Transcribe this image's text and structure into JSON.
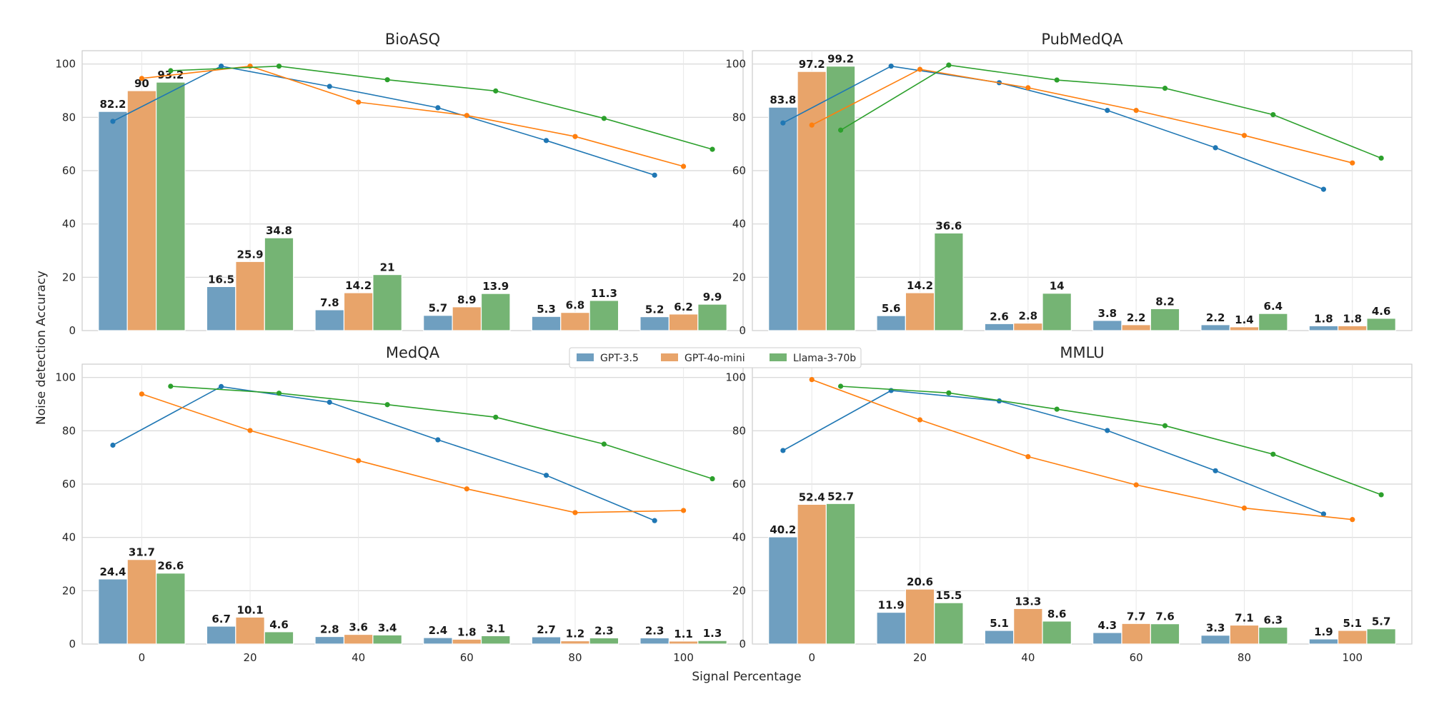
{
  "figure": {
    "xlabel": "Signal Percentage",
    "ylabel": "Noise detection Accuracy"
  },
  "legend": {
    "placement": "center",
    "items": [
      {
        "name": "GPT-3.5",
        "color": "#1f77b4"
      },
      {
        "name": "GPT-4o-mini",
        "color": "#ff7f0e"
      },
      {
        "name": "Llama-3-70b",
        "color": "#2ca02c"
      }
    ]
  },
  "chart_data": [
    {
      "type": "bar",
      "title": "BioASQ",
      "categories": [
        "0",
        "20",
        "40",
        "60",
        "80",
        "100"
      ],
      "ylim": [
        0,
        105
      ],
      "yticks": [
        0,
        20,
        40,
        60,
        80,
        100
      ],
      "grid": true,
      "series": [
        {
          "name": "GPT-3.5",
          "values": [
            82.2,
            16.5,
            7.8,
            5.7,
            5.3,
            5.2
          ],
          "labels": [
            "82.2",
            "16.5",
            "7.8",
            "5.7",
            "5.3",
            "5.2"
          ]
        },
        {
          "name": "GPT-4o-mini",
          "values": [
            90,
            25.9,
            14.2,
            8.9,
            6.8,
            6.2
          ],
          "labels": [
            "90",
            "25.9",
            "14.2",
            "8.9",
            "6.8",
            "6.2"
          ]
        },
        {
          "name": "Llama-3-70b",
          "values": [
            93.2,
            34.8,
            21,
            13.9,
            11.3,
            9.9
          ],
          "labels": [
            "93.2",
            "34.8",
            "21",
            "13.9",
            "11.3",
            "9.9"
          ]
        }
      ],
      "lines": [
        {
          "name": "GPT-3.5",
          "values": [
            78.5,
            99.2,
            91.6,
            83.6,
            71.3,
            58.3
          ]
        },
        {
          "name": "GPT-4o-mini",
          "values": [
            94.6,
            99.2,
            85.7,
            80.7,
            72.8,
            61.6
          ]
        },
        {
          "name": "Llama-3-70b",
          "values": [
            97.5,
            99.2,
            94.1,
            89.9,
            79.6,
            68
          ]
        }
      ]
    },
    {
      "type": "bar",
      "title": "PubMedQA",
      "categories": [
        "0",
        "20",
        "40",
        "60",
        "80",
        "100"
      ],
      "ylim": [
        0,
        105
      ],
      "yticks": [
        0,
        20,
        40,
        60,
        80,
        100
      ],
      "grid": true,
      "series": [
        {
          "name": "GPT-3.5",
          "values": [
            83.8,
            5.6,
            2.6,
            3.8,
            2.2,
            1.8
          ],
          "labels": [
            "83.8",
            "5.6",
            "2.6",
            "3.8",
            "2.2",
            "1.8"
          ]
        },
        {
          "name": "GPT-4o-mini",
          "values": [
            97.2,
            14.2,
            2.8,
            2.2,
            1.4,
            1.8
          ],
          "labels": [
            "97.2",
            "14.2",
            "2.8",
            "2.2",
            "1.4",
            "1.8"
          ]
        },
        {
          "name": "Llama-3-70b",
          "values": [
            99.2,
            36.6,
            14,
            8.2,
            6.4,
            4.6
          ],
          "labels": [
            "99.2",
            "36.6",
            "14",
            "8.2",
            "6.4",
            "4.6"
          ]
        }
      ],
      "lines": [
        {
          "name": "GPT-3.5",
          "values": [
            77.9,
            99.2,
            93,
            82.6,
            68.6,
            53
          ]
        },
        {
          "name": "GPT-4o-mini",
          "values": [
            77.1,
            98,
            91.1,
            82.6,
            73.2,
            62.9
          ]
        },
        {
          "name": "Llama-3-70b",
          "values": [
            75.2,
            99.6,
            94,
            90.9,
            81,
            64.7
          ]
        }
      ]
    },
    {
      "type": "bar",
      "title": "MedQA",
      "categories": [
        "0",
        "20",
        "40",
        "60",
        "80",
        "100"
      ],
      "ylim": [
        0,
        105
      ],
      "yticks": [
        0,
        20,
        40,
        60,
        80,
        100
      ],
      "grid": true,
      "series": [
        {
          "name": "GPT-3.5",
          "values": [
            24.4,
            6.7,
            2.8,
            2.4,
            2.7,
            2.3
          ],
          "labels": [
            "24.4",
            "6.7",
            "2.8",
            "2.4",
            "2.7",
            "2.3"
          ]
        },
        {
          "name": "GPT-4o-mini",
          "values": [
            31.7,
            10.1,
            3.6,
            1.8,
            1.2,
            1.1
          ],
          "labels": [
            "31.7",
            "10.1",
            "3.6",
            "1.8",
            "1.2",
            "1.1"
          ]
        },
        {
          "name": "Llama-3-70b",
          "values": [
            26.6,
            4.6,
            3.4,
            3.1,
            2.3,
            1.3
          ],
          "labels": [
            "26.6",
            "4.6",
            "3.4",
            "3.1",
            "2.3",
            "1.3"
          ]
        }
      ],
      "lines": [
        {
          "name": "GPT-3.5",
          "values": [
            74.6,
            96.6,
            90.7,
            76.6,
            63.3,
            46.3
          ]
        },
        {
          "name": "GPT-4o-mini",
          "values": [
            93.8,
            80.1,
            68.8,
            58.2,
            49.3,
            50.1
          ]
        },
        {
          "name": "Llama-3-70b",
          "values": [
            96.7,
            94.1,
            89.8,
            85.1,
            75,
            62
          ]
        }
      ]
    },
    {
      "type": "bar",
      "title": "MMLU",
      "categories": [
        "0",
        "20",
        "40",
        "60",
        "80",
        "100"
      ],
      "ylim": [
        0,
        105
      ],
      "yticks": [
        0,
        20,
        40,
        60,
        80,
        100
      ],
      "grid": true,
      "series": [
        {
          "name": "GPT-3.5",
          "values": [
            40.2,
            11.9,
            5.1,
            4.3,
            3.3,
            1.9
          ],
          "labels": [
            "40.2",
            "11.9",
            "5.1",
            "4.3",
            "3.3",
            "1.9"
          ]
        },
        {
          "name": "GPT-4o-mini",
          "values": [
            52.4,
            20.6,
            13.3,
            7.7,
            7.1,
            5.1
          ],
          "labels": [
            "52.4",
            "20.6",
            "13.3",
            "7.7",
            "7.1",
            "5.1"
          ]
        },
        {
          "name": "Llama-3-70b",
          "values": [
            52.7,
            15.5,
            8.6,
            7.6,
            6.3,
            5.7
          ],
          "labels": [
            "52.7",
            "15.5",
            "8.6",
            "7.6",
            "6.3",
            "5.7"
          ]
        }
      ],
      "lines": [
        {
          "name": "GPT-3.5",
          "values": [
            72.6,
            95.1,
            91.2,
            80.1,
            65,
            48.8
          ]
        },
        {
          "name": "GPT-4o-mini",
          "values": [
            99.2,
            84.1,
            70.3,
            59.7,
            51,
            46.7
          ]
        },
        {
          "name": "Llama-3-70b",
          "values": [
            96.7,
            94.2,
            88.1,
            81.9,
            71.2,
            56
          ]
        }
      ]
    }
  ]
}
